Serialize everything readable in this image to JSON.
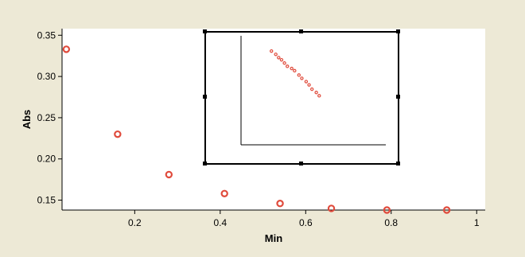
{
  "chart_data": [
    {
      "type": "scatter",
      "xlabel": "Min",
      "ylabel": "Abs",
      "xlim": [
        0.03,
        1.02
      ],
      "ylim": [
        0.138,
        0.358
      ],
      "xticks": [
        0.2,
        0.4,
        0.6,
        0.8,
        1.0
      ],
      "xtick_labels": [
        "0.2",
        "0.4",
        "0.6",
        "0.8",
        "1"
      ],
      "yticks": [
        0.15,
        0.2,
        0.25,
        0.3,
        0.35
      ],
      "ytick_labels": [
        "0.15",
        "0.20",
        "0.25",
        "0.30",
        "0.35"
      ],
      "grid": false,
      "point_color": "#e04b3c",
      "series": [
        {
          "x": [
            0.04,
            0.16,
            0.28,
            0.41,
            0.54,
            0.66,
            0.79,
            0.93
          ],
          "y": [
            0.333,
            0.23,
            0.181,
            0.158,
            0.146,
            0.14,
            0.138,
            0.138
          ]
        }
      ]
    },
    {
      "type": "scatter",
      "role": "inset",
      "xlim": [
        0,
        10
      ],
      "ylim": [
        0,
        10
      ],
      "point_color": "#e04b3c",
      "series": [
        {
          "x": [
            2.1,
            2.4,
            2.6,
            2.8,
            3.0,
            3.2,
            3.5,
            3.7,
            4.0,
            4.2,
            4.5,
            4.7,
            4.9,
            5.2,
            5.4
          ],
          "y": [
            8.6,
            8.3,
            8.0,
            7.8,
            7.5,
            7.2,
            7.0,
            6.8,
            6.4,
            6.1,
            5.8,
            5.5,
            5.1,
            4.8,
            4.5
          ]
        }
      ]
    }
  ]
}
